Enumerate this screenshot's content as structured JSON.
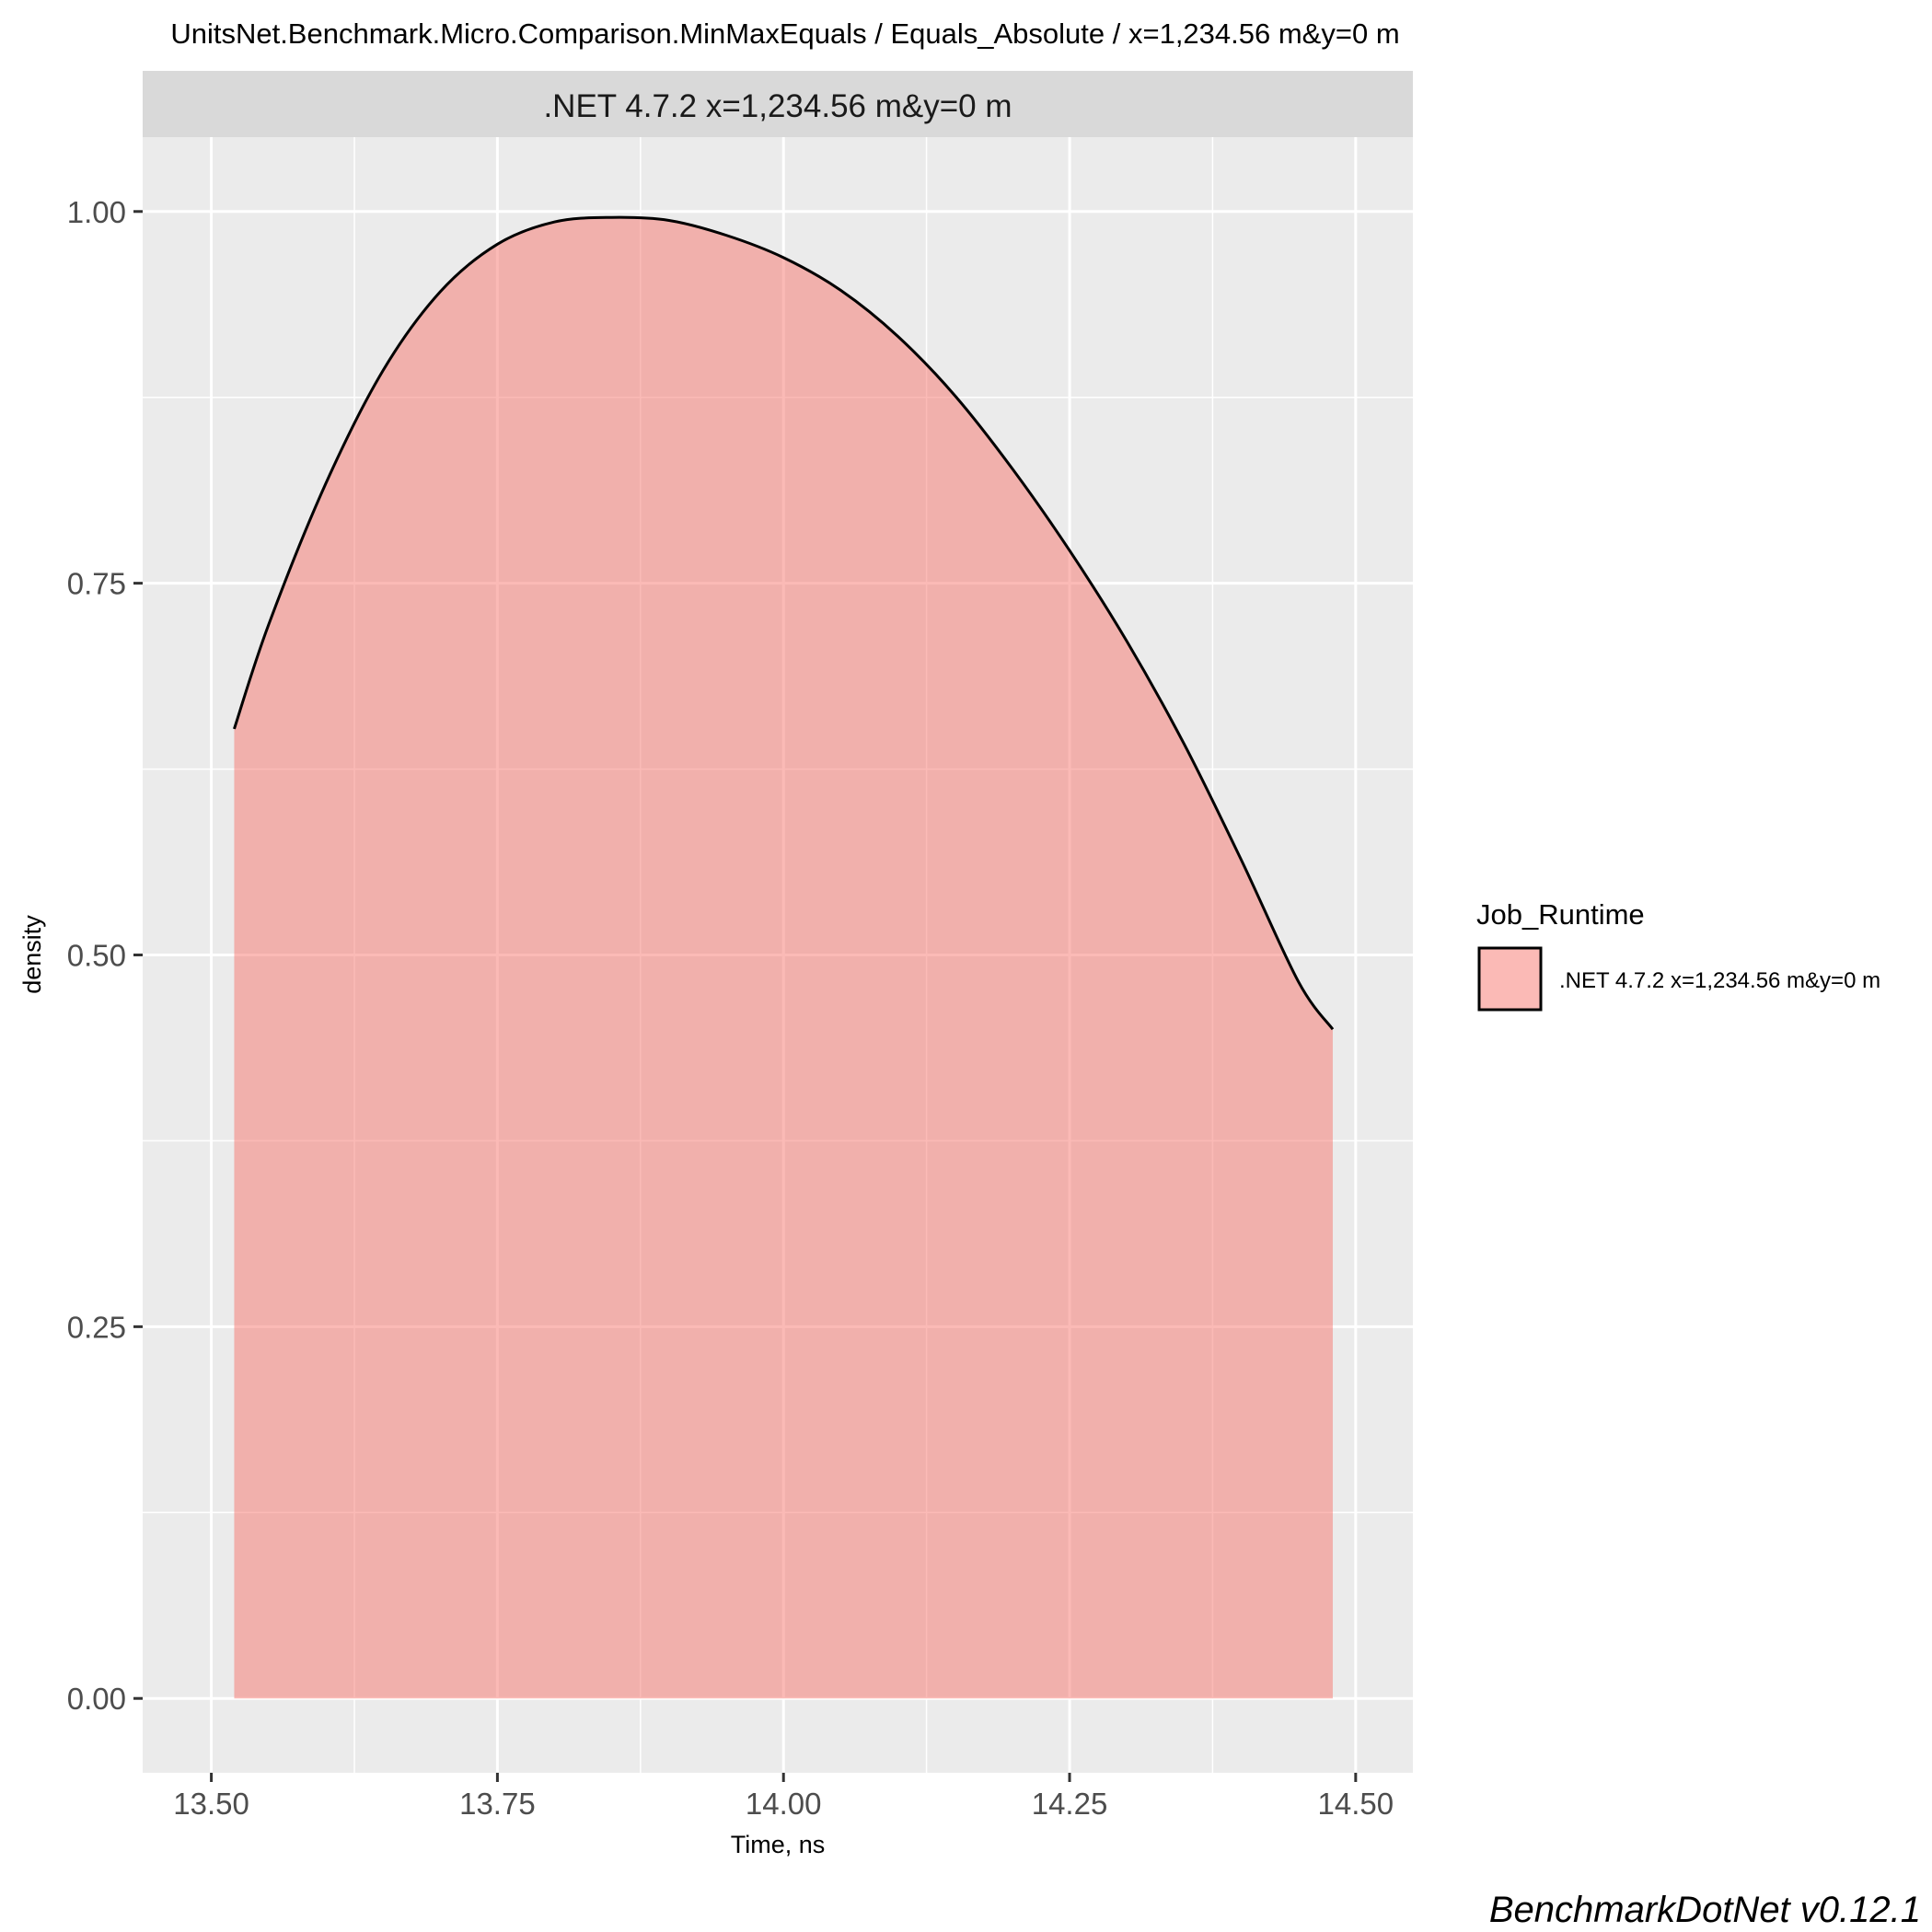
{
  "chart_data": {
    "type": "area",
    "title": "UnitsNet.Benchmark.Micro.Comparison.MinMaxEquals / Equals_Absolute / x=1,234.56 m&y=0 m",
    "facet_label": ".NET 4.7.2 x=1,234.56 m&y=0 m",
    "xlabel": "Time, ns",
    "ylabel": "density",
    "xlim": [
      13.44,
      14.55
    ],
    "ylim": [
      -0.05,
      1.05
    ],
    "x_ticks": [
      13.5,
      13.75,
      14.0,
      14.25,
      14.5
    ],
    "x_tick_labels": [
      "13.50",
      "13.75",
      "14.00",
      "14.25",
      "14.50"
    ],
    "y_ticks": [
      0,
      0.25,
      0.5,
      0.75,
      1.0
    ],
    "y_tick_labels": [
      "0.00",
      "0.25",
      "0.50",
      "0.75",
      "1.00"
    ],
    "grid": true,
    "legend": {
      "title": "Job_Runtime",
      "position": "right"
    },
    "series": [
      {
        "name": ".NET 4.7.2 x=1,234.56 m&y=0 m",
        "fill": "#F8766D",
        "alpha": 0.5,
        "x": [
          13.52,
          13.55,
          13.6,
          13.65,
          13.7,
          13.75,
          13.8,
          13.85,
          13.9,
          13.95,
          14.0,
          14.05,
          14.1,
          14.15,
          14.2,
          14.25,
          14.3,
          14.35,
          14.4,
          14.45,
          14.48
        ],
        "y": [
          0.652,
          0.722,
          0.817,
          0.893,
          0.946,
          0.978,
          0.993,
          0.996,
          0.994,
          0.984,
          0.969,
          0.947,
          0.916,
          0.876,
          0.827,
          0.772,
          0.711,
          0.642,
          0.564,
          0.482,
          0.45
        ]
      }
    ]
  },
  "caption": "BenchmarkDotNet v0.12.1",
  "colors": {
    "panel_bg": "#EBEBEB",
    "strip_bg": "#D9D9D9",
    "grid": "#FFFFFF",
    "outline": "#000000"
  }
}
